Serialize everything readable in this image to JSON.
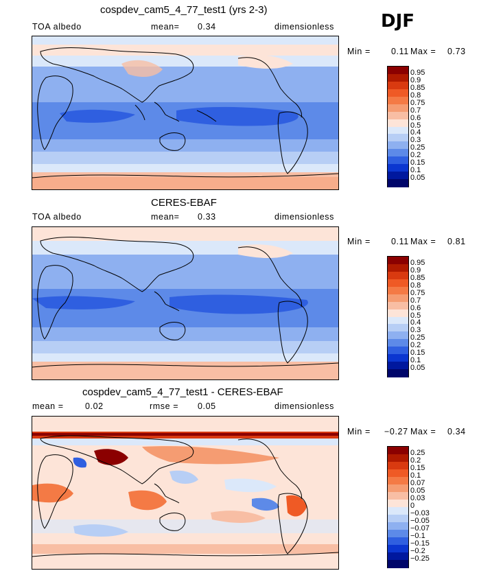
{
  "season": "DJF",
  "panels": [
    {
      "title": "cospdev_cam5_4_77_test1 (yrs 2-3)",
      "left_label": "TOA albedo",
      "mid_label": "mean=",
      "mid_value": "0.34",
      "right_label": "dimensionless",
      "min_label": "Min =",
      "min_value": "0.11",
      "max_label": "Max =",
      "max_value": "0.73"
    },
    {
      "title": "CERES-EBAF",
      "left_label": "TOA albedo",
      "mid_label": "mean=",
      "mid_value": "0.33",
      "right_label": "dimensionless",
      "min_label": "Min =",
      "min_value": "0.11",
      "max_label": "Max =",
      "max_value": "0.81"
    },
    {
      "title": "cospdev_cam5_4_77_test1 - CERES-EBAF",
      "left_label": "mean =",
      "left_value": "0.02",
      "mid_label": "rmse =",
      "mid_value": "0.05",
      "right_label": "dimensionless",
      "min_label": "Min =",
      "min_value": "−0.27",
      "max_label": "Max =",
      "max_value": "0.34"
    }
  ],
  "colorbars": {
    "absolute": {
      "levels": [
        "0.95",
        "0.9",
        "0.85",
        "0.8",
        "0.75",
        "0.7",
        "0.6",
        "0.5",
        "0.4",
        "0.3",
        "0.25",
        "0.2",
        "0.15",
        "0.1",
        "0.05"
      ],
      "colors": [
        "#8b0000",
        "#b01a00",
        "#d93a10",
        "#ef5a25",
        "#f47a45",
        "#f59c72",
        "#f8bea4",
        "#fde4d8",
        "#dbe8fa",
        "#b7cef5",
        "#8eb0f0",
        "#5d8ae8",
        "#2f5fe0",
        "#0b36d0",
        "#00189e",
        "#00066a"
      ]
    },
    "difference": {
      "levels": [
        "0.25",
        "0.2",
        "0.15",
        "0.1",
        "0.07",
        "0.05",
        "0.03",
        "0",
        "−0.03",
        "−0.05",
        "−0.07",
        "−0.1",
        "−0.15",
        "−0.2",
        "−0.25"
      ],
      "colors": [
        "#8b0000",
        "#b01a00",
        "#d93a10",
        "#ef5a25",
        "#f47a45",
        "#f59c72",
        "#f8bea4",
        "#fde4d8",
        "#dbe8fa",
        "#b7cef5",
        "#8eb0f0",
        "#5d8ae8",
        "#2f5fe0",
        "#0b36d0",
        "#00189e",
        "#00066a"
      ]
    }
  },
  "chart_data": [
    {
      "type": "heatmap",
      "title": "cospdev_cam5_4_77_test1 (yrs 2-3)",
      "variable": "TOA albedo",
      "units": "dimensionless",
      "mean": 0.34,
      "min": 0.11,
      "max": 0.73,
      "contour_levels": [
        0.05,
        0.1,
        0.15,
        0.2,
        0.25,
        0.3,
        0.4,
        0.5,
        0.6,
        0.7,
        0.75,
        0.8,
        0.85,
        0.9,
        0.95
      ]
    },
    {
      "type": "heatmap",
      "title": "CERES-EBAF",
      "variable": "TOA albedo",
      "units": "dimensionless",
      "mean": 0.33,
      "min": 0.11,
      "max": 0.81,
      "contour_levels": [
        0.05,
        0.1,
        0.15,
        0.2,
        0.25,
        0.3,
        0.4,
        0.5,
        0.6,
        0.7,
        0.75,
        0.8,
        0.85,
        0.9,
        0.95
      ]
    },
    {
      "type": "heatmap",
      "title": "cospdev_cam5_4_77_test1 - CERES-EBAF",
      "units": "dimensionless",
      "mean": 0.02,
      "rmse": 0.05,
      "min": -0.27,
      "max": 0.34,
      "contour_levels": [
        -0.25,
        -0.2,
        -0.15,
        -0.1,
        -0.07,
        -0.05,
        -0.03,
        0,
        0.03,
        0.05,
        0.07,
        0.1,
        0.15,
        0.2,
        0.25
      ]
    }
  ]
}
